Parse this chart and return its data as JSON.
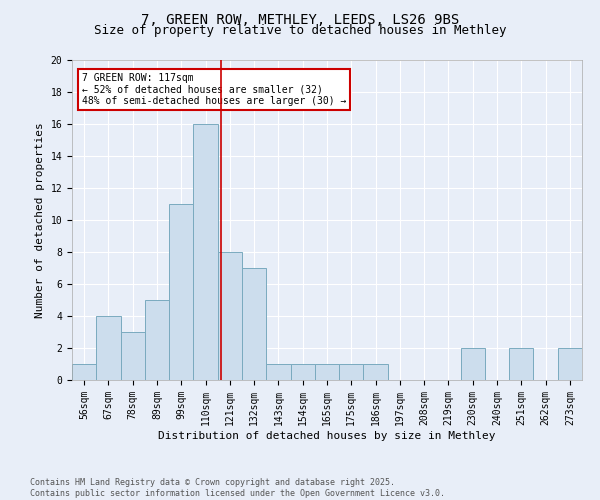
{
  "title1": "7, GREEN ROW, METHLEY, LEEDS, LS26 9BS",
  "title2": "Size of property relative to detached houses in Methley",
  "xlabel": "Distribution of detached houses by size in Methley",
  "ylabel": "Number of detached properties",
  "bins": [
    "56sqm",
    "67sqm",
    "78sqm",
    "89sqm",
    "99sqm",
    "110sqm",
    "121sqm",
    "132sqm",
    "143sqm",
    "154sqm",
    "165sqm",
    "175sqm",
    "186sqm",
    "197sqm",
    "208sqm",
    "219sqm",
    "230sqm",
    "240sqm",
    "251sqm",
    "262sqm",
    "273sqm"
  ],
  "values": [
    1,
    4,
    3,
    5,
    11,
    16,
    8,
    7,
    1,
    1,
    1,
    1,
    1,
    0,
    0,
    0,
    2,
    0,
    2,
    0,
    2
  ],
  "bar_color": "#ccdded",
  "bar_edge_color": "#7aaabf",
  "annotation_text": "7 GREEN ROW: 117sqm\n← 52% of detached houses are smaller (32)\n48% of semi-detached houses are larger (30) →",
  "annotation_box_facecolor": "#ffffff",
  "annotation_box_edgecolor": "#cc0000",
  "vline_color": "#cc0000",
  "footer": "Contains HM Land Registry data © Crown copyright and database right 2025.\nContains public sector information licensed under the Open Government Licence v3.0.",
  "ylim": [
    0,
    20
  ],
  "yticks": [
    0,
    2,
    4,
    6,
    8,
    10,
    12,
    14,
    16,
    18,
    20
  ],
  "bg_color": "#e8eef8",
  "grid_color": "#ffffff",
  "title1_fontsize": 10,
  "title2_fontsize": 9,
  "axis_label_fontsize": 8,
  "tick_fontsize": 7,
  "annotation_fontsize": 7,
  "footer_fontsize": 6
}
